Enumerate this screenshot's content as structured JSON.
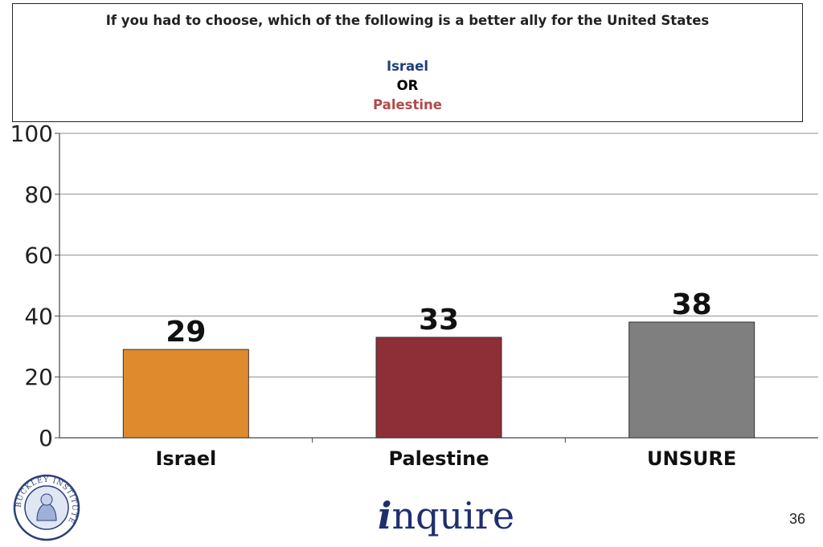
{
  "question": {
    "title": "If you had to choose, which of the following is a better ally for the United States",
    "option_a": "Israel",
    "connector": "OR",
    "option_b": "Palestine",
    "option_a_color": "#1f3f7a",
    "option_b_color": "#b14a4a"
  },
  "chart_data": {
    "type": "bar",
    "title": "",
    "xlabel": "",
    "ylabel": "",
    "categories": [
      "Israel",
      "Palestine",
      "UNSURE"
    ],
    "values": [
      29,
      33,
      38
    ],
    "colors": [
      "#e08a2e",
      "#8e2e37",
      "#7f7f7f"
    ],
    "ylim": [
      0,
      100
    ],
    "yticks": [
      0,
      20,
      40,
      60,
      80,
      100
    ],
    "grid": true,
    "data_labels": true,
    "legend": "none"
  },
  "footer": {
    "logo_text": "inquire",
    "seal_text": "BUCKLEY INSTITUTE",
    "page_number": "36"
  }
}
